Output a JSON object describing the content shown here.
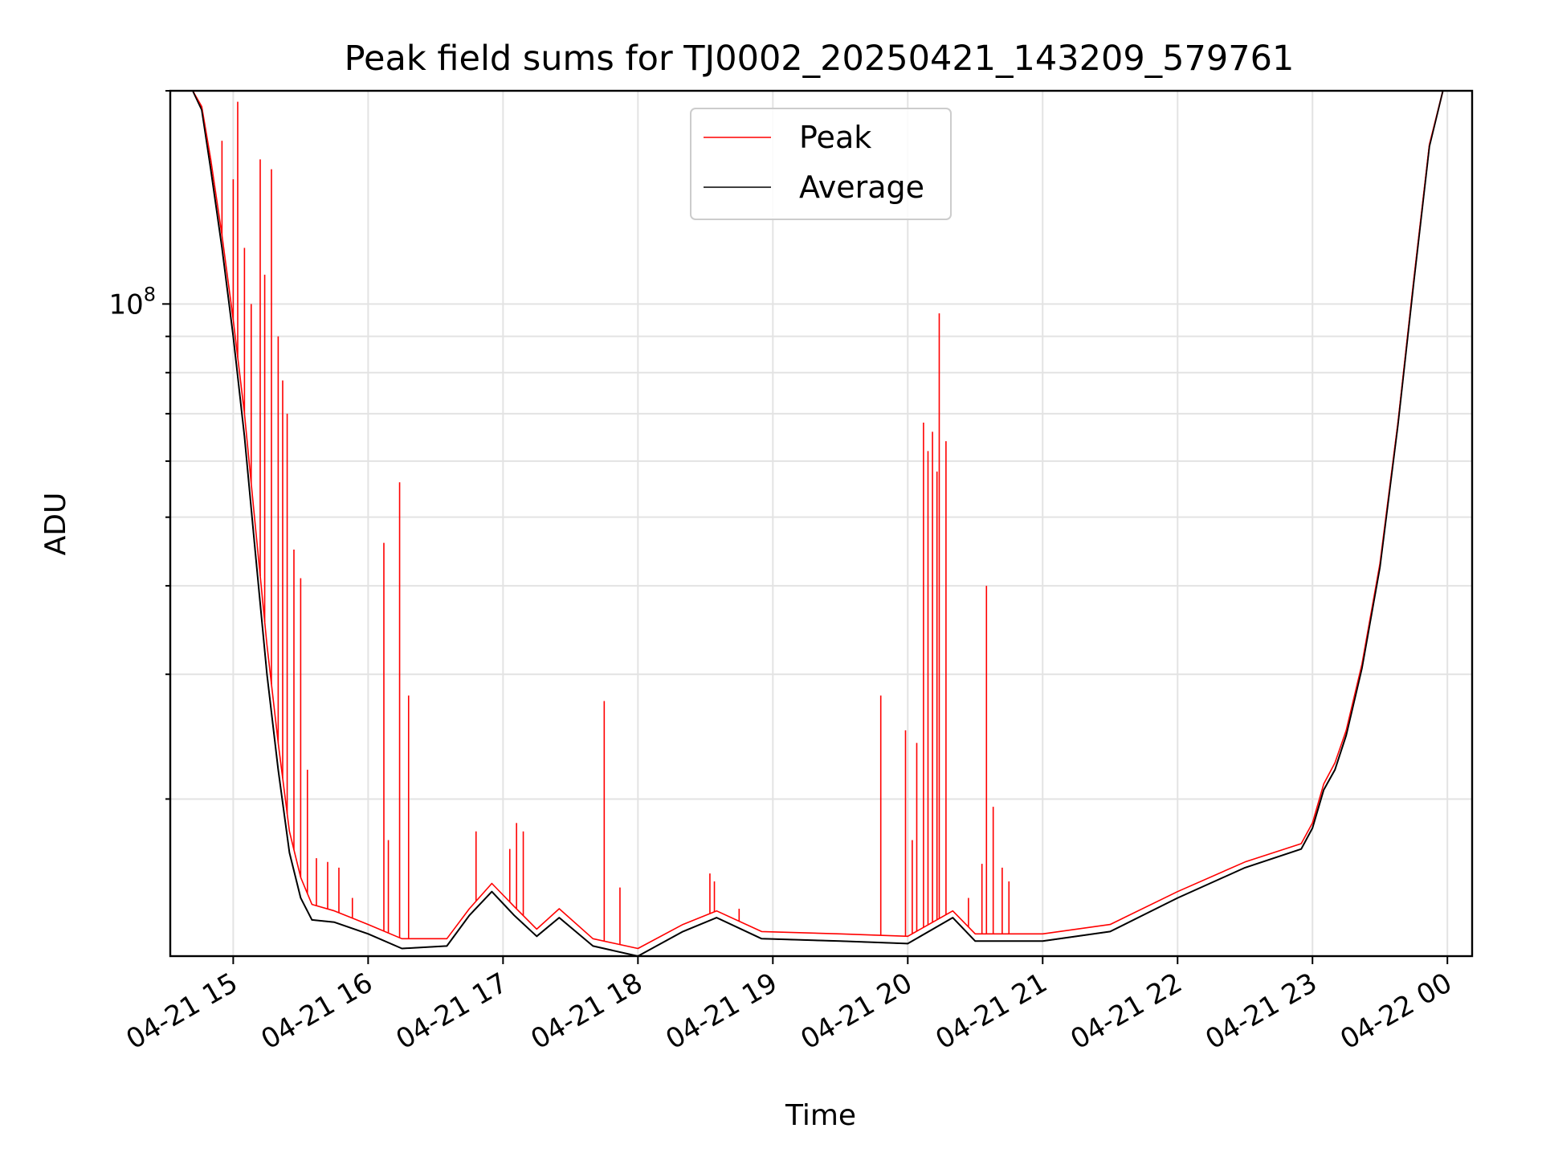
{
  "chart_data": {
    "type": "line",
    "title": "Peak field sums for TJ0002_20250421_143209_579761",
    "xlabel": "Time",
    "ylabel": "ADU",
    "x_range": [
      "2025-04-21 14:32",
      "2025-04-22 00:11"
    ],
    "ylim": [
      12000000,
      200000000
    ],
    "yscale": "log",
    "x_ticks": [
      "04-21 15",
      "04-21 16",
      "04-21 17",
      "04-21 18",
      "04-21 19",
      "04-21 20",
      "04-21 21",
      "04-21 22",
      "04-21 23",
      "04-22 00"
    ],
    "y_ticks": [
      {
        "value": 100000000,
        "base": "10",
        "exp": "8"
      }
    ],
    "y_minor_ticks": [
      20000000,
      30000000,
      40000000,
      50000000,
      60000000,
      70000000,
      80000000,
      90000000,
      200000000
    ],
    "grid": true,
    "legend_position": "top-center",
    "series": [
      {
        "name": "Peak",
        "color": "#ff0000",
        "points": [
          [
            "2025-04-21 14:32",
            200000000
          ],
          [
            "2025-04-21 14:42",
            200000000
          ],
          [
            "2025-04-21 14:46",
            190000000
          ],
          [
            "2025-04-21 14:50",
            160000000
          ],
          [
            "2025-04-21 14:55",
            125000000
          ],
          [
            "2025-04-21 15:00",
            95000000
          ],
          [
            "2025-04-21 15:05",
            70000000
          ],
          [
            "2025-04-21 15:10",
            48000000
          ],
          [
            "2025-04-21 15:15",
            33000000
          ],
          [
            "2025-04-21 15:20",
            24000000
          ],
          [
            "2025-04-21 15:25",
            18000000
          ],
          [
            "2025-04-21 15:30",
            15500000
          ],
          [
            "2025-04-21 15:35",
            14200000
          ],
          [
            "2025-04-21 15:45",
            13900000
          ],
          [
            "2025-04-21 16:00",
            13300000
          ],
          [
            "2025-04-21 16:15",
            12700000
          ],
          [
            "2025-04-21 16:35",
            12700000
          ],
          [
            "2025-04-21 16:45",
            14000000
          ],
          [
            "2025-04-21 16:55",
            15200000
          ],
          [
            "2025-04-21 17:05",
            14100000
          ],
          [
            "2025-04-21 17:15",
            13100000
          ],
          [
            "2025-04-21 17:25",
            14000000
          ],
          [
            "2025-04-21 17:40",
            12700000
          ],
          [
            "2025-04-21 18:00",
            12300000
          ],
          [
            "2025-04-21 18:20",
            13300000
          ],
          [
            "2025-04-21 18:35",
            13900000
          ],
          [
            "2025-04-21 18:55",
            13000000
          ],
          [
            "2025-04-21 19:30",
            12900000
          ],
          [
            "2025-04-21 20:00",
            12800000
          ],
          [
            "2025-04-21 20:20",
            13900000
          ],
          [
            "2025-04-21 20:30",
            12900000
          ],
          [
            "2025-04-21 21:00",
            12900000
          ],
          [
            "2025-04-21 21:30",
            13300000
          ],
          [
            "2025-04-21 22:00",
            14800000
          ],
          [
            "2025-04-21 22:30",
            16300000
          ],
          [
            "2025-04-21 22:55",
            17300000
          ],
          [
            "2025-04-21 23:00",
            18500000
          ],
          [
            "2025-04-21 23:05",
            21000000
          ],
          [
            "2025-04-21 23:10",
            22500000
          ],
          [
            "2025-04-21 23:15",
            25000000
          ],
          [
            "2025-04-21 23:22",
            31000000
          ],
          [
            "2025-04-21 23:30",
            43000000
          ],
          [
            "2025-04-21 23:38",
            68000000
          ],
          [
            "2025-04-21 23:45",
            108000000
          ],
          [
            "2025-04-21 23:52",
            168000000
          ],
          [
            "2025-04-21 23:58",
            200000000
          ],
          [
            "2025-04-22 00:11",
            200000000
          ]
        ],
        "spikes": [
          [
            "2025-04-21 14:55",
            170000000
          ],
          [
            "2025-04-21 15:00",
            150000000
          ],
          [
            "2025-04-21 15:02",
            193000000
          ],
          [
            "2025-04-21 15:05",
            120000000
          ],
          [
            "2025-04-21 15:08",
            100000000
          ],
          [
            "2025-04-21 15:12",
            160000000
          ],
          [
            "2025-04-21 15:14",
            110000000
          ],
          [
            "2025-04-21 15:17",
            155000000
          ],
          [
            "2025-04-21 15:20",
            90000000
          ],
          [
            "2025-04-21 15:22",
            78000000
          ],
          [
            "2025-04-21 15:24",
            70000000
          ],
          [
            "2025-04-21 15:27",
            45000000
          ],
          [
            "2025-04-21 15:30",
            41000000
          ],
          [
            "2025-04-21 15:33",
            22000000
          ],
          [
            "2025-04-21 15:37",
            16500000
          ],
          [
            "2025-04-21 15:42",
            16300000
          ],
          [
            "2025-04-21 15:47",
            16000000
          ],
          [
            "2025-04-21 15:53",
            14500000
          ],
          [
            "2025-04-21 16:07",
            46000000
          ],
          [
            "2025-04-21 16:09",
            17500000
          ],
          [
            "2025-04-21 16:14",
            56000000
          ],
          [
            "2025-04-21 16:18",
            28000000
          ],
          [
            "2025-04-21 16:48",
            18000000
          ],
          [
            "2025-04-21 17:03",
            17000000
          ],
          [
            "2025-04-21 17:06",
            18500000
          ],
          [
            "2025-04-21 17:09",
            18000000
          ],
          [
            "2025-04-21 17:45",
            27500000
          ],
          [
            "2025-04-21 17:52",
            15000000
          ],
          [
            "2025-04-21 18:32",
            15700000
          ],
          [
            "2025-04-21 18:34",
            15300000
          ],
          [
            "2025-04-21 18:45",
            14000000
          ],
          [
            "2025-04-21 19:48",
            28000000
          ],
          [
            "2025-04-21 19:59",
            25000000
          ],
          [
            "2025-04-21 20:02",
            17500000
          ],
          [
            "2025-04-21 20:04",
            24000000
          ],
          [
            "2025-04-21 20:07",
            68000000
          ],
          [
            "2025-04-21 20:09",
            62000000
          ],
          [
            "2025-04-21 20:11",
            66000000
          ],
          [
            "2025-04-21 20:13",
            58000000
          ],
          [
            "2025-04-21 20:14",
            97000000
          ],
          [
            "2025-04-21 20:17",
            64000000
          ],
          [
            "2025-04-21 20:27",
            14500000
          ],
          [
            "2025-04-21 20:33",
            16200000
          ],
          [
            "2025-04-21 20:35",
            40000000
          ],
          [
            "2025-04-21 20:38",
            19500000
          ],
          [
            "2025-04-21 20:42",
            16000000
          ],
          [
            "2025-04-21 20:45",
            15300000
          ]
        ]
      },
      {
        "name": "Average",
        "color": "#000000",
        "points": [
          [
            "2025-04-21 14:32",
            200000000
          ],
          [
            "2025-04-21 14:42",
            200000000
          ],
          [
            "2025-04-21 14:46",
            188000000
          ],
          [
            "2025-04-21 14:50",
            155000000
          ],
          [
            "2025-04-21 14:55",
            120000000
          ],
          [
            "2025-04-21 15:00",
            90000000
          ],
          [
            "2025-04-21 15:05",
            65000000
          ],
          [
            "2025-04-21 15:10",
            44000000
          ],
          [
            "2025-04-21 15:15",
            30000000
          ],
          [
            "2025-04-21 15:20",
            22000000
          ],
          [
            "2025-04-21 15:25",
            16800000
          ],
          [
            "2025-04-21 15:30",
            14500000
          ],
          [
            "2025-04-21 15:35",
            13500000
          ],
          [
            "2025-04-21 15:45",
            13400000
          ],
          [
            "2025-04-21 16:00",
            12900000
          ],
          [
            "2025-04-21 16:15",
            12300000
          ],
          [
            "2025-04-21 16:35",
            12400000
          ],
          [
            "2025-04-21 16:45",
            13700000
          ],
          [
            "2025-04-21 16:55",
            14800000
          ],
          [
            "2025-04-21 17:05",
            13700000
          ],
          [
            "2025-04-21 17:15",
            12800000
          ],
          [
            "2025-04-21 17:25",
            13600000
          ],
          [
            "2025-04-21 17:40",
            12400000
          ],
          [
            "2025-04-21 18:00",
            12000000
          ],
          [
            "2025-04-21 18:20",
            13000000
          ],
          [
            "2025-04-21 18:35",
            13600000
          ],
          [
            "2025-04-21 18:55",
            12700000
          ],
          [
            "2025-04-21 19:30",
            12600000
          ],
          [
            "2025-04-21 20:00",
            12500000
          ],
          [
            "2025-04-21 20:20",
            13600000
          ],
          [
            "2025-04-21 20:30",
            12600000
          ],
          [
            "2025-04-21 21:00",
            12600000
          ],
          [
            "2025-04-21 21:30",
            13000000
          ],
          [
            "2025-04-21 22:00",
            14500000
          ],
          [
            "2025-04-21 22:30",
            16000000
          ],
          [
            "2025-04-21 22:55",
            17000000
          ],
          [
            "2025-04-21 23:00",
            18200000
          ],
          [
            "2025-04-21 23:05",
            20600000
          ],
          [
            "2025-04-21 23:10",
            22000000
          ],
          [
            "2025-04-21 23:15",
            24600000
          ],
          [
            "2025-04-21 23:22",
            30600000
          ],
          [
            "2025-04-21 23:30",
            42500000
          ],
          [
            "2025-04-21 23:38",
            67500000
          ],
          [
            "2025-04-21 23:45",
            107000000
          ],
          [
            "2025-04-21 23:52",
            167000000
          ],
          [
            "2025-04-21 23:58",
            200000000
          ],
          [
            "2025-04-22 00:11",
            200000000
          ]
        ]
      }
    ]
  }
}
